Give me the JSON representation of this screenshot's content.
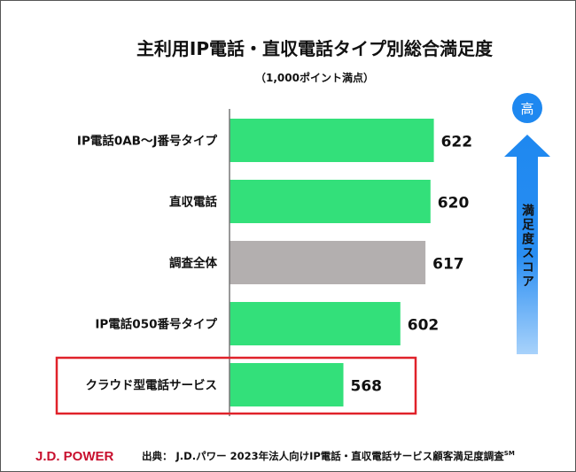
{
  "chart_data": {
    "type": "bar",
    "orientation": "horizontal",
    "title": "主利用IP電話・直収電話タイプ別総合満足度",
    "subtitle": "（1,000ポイント満点）",
    "categories": [
      "IP電話0AB～J番号タイプ",
      "直収電話",
      "調査全体",
      "IP電話050番号タイプ",
      "クラウド型電話サービス"
    ],
    "values": [
      622,
      620,
      617,
      602,
      568
    ],
    "bar_colors": [
      "#33e07a",
      "#33e07a",
      "#b3afaf",
      "#33e07a",
      "#33e07a"
    ],
    "highlighted_category": "クラウド型電話サービス",
    "highlight_color": "#e0222a",
    "xlim": [
      500,
      700
    ],
    "grid": false,
    "xlabel": "",
    "ylabel": ""
  },
  "scale_indicator": {
    "high_label": "高",
    "axis_label": "満足度スコア",
    "color": "#1e88f0"
  },
  "footer": {
    "logo": "J.D. POWER",
    "source": "出典： J.D.パワー 2023年法人向けIP電話・直収電話サービス顧客満足度調査",
    "source_mark": "SM"
  }
}
